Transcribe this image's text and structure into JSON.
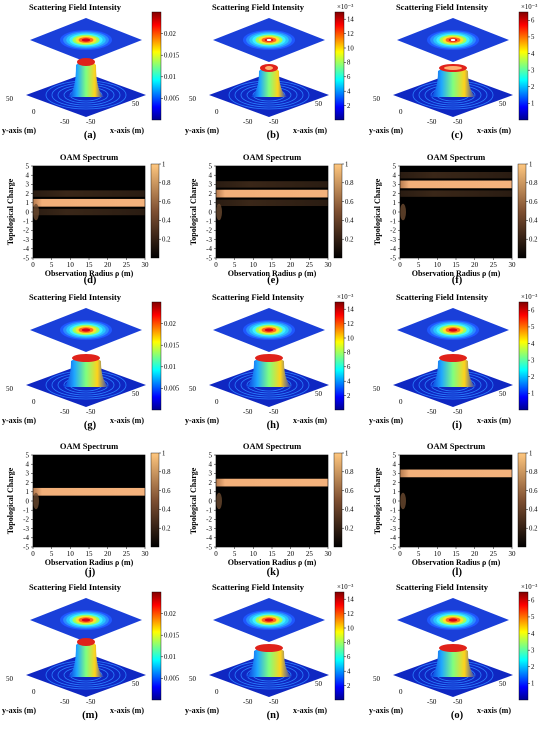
{
  "chart_data": [
    {
      "id": "a",
      "type": "surface3d",
      "panel_label": "(a)",
      "title": "Scattering Field Intensity",
      "xlabel": "x-axis (m)",
      "ylabel": "y-axis (m)",
      "x_ticks": [
        "-50",
        "50"
      ],
      "y_ticks": [
        "50",
        "0",
        "-50"
      ],
      "colorbar": {
        "ticks": [
          "0.005",
          "0.01",
          "0.015",
          "0.02"
        ],
        "range": [
          0,
          0.025
        ],
        "exponent": "",
        "colormap": "jet"
      },
      "peak_shape": "sharp"
    },
    {
      "id": "b",
      "type": "surface3d",
      "panel_label": "(b)",
      "title": "Scattering Field Intensity",
      "xlabel": "x-axis (m)",
      "ylabel": "y-axis (m)",
      "x_ticks": [
        "-50",
        "50"
      ],
      "y_ticks": [
        "50",
        "0",
        "-50"
      ],
      "colorbar": {
        "ticks": [
          "2",
          "4",
          "6",
          "8",
          "10",
          "12",
          "14"
        ],
        "range": [
          0,
          15
        ],
        "exponent": "×10⁻³",
        "colormap": "jet"
      },
      "peak_shape": "ring"
    },
    {
      "id": "c",
      "type": "surface3d",
      "panel_label": "(c)",
      "title": "Scattering Field Intensity",
      "xlabel": "x-axis (m)",
      "ylabel": "y-axis (m)",
      "x_ticks": [
        "-50",
        "50"
      ],
      "y_ticks": [
        "50",
        "0",
        "-50"
      ],
      "colorbar": {
        "ticks": [
          "1",
          "2",
          "3",
          "4",
          "5",
          "6"
        ],
        "range": [
          0,
          6.5
        ],
        "exponent": "×10⁻³",
        "colormap": "jet"
      },
      "peak_shape": "wide-ring"
    },
    {
      "id": "d",
      "type": "heatmap",
      "panel_label": "(d)",
      "title": "OAM Spectrum",
      "xlabel": "Observation Radius ρ (m)",
      "ylabel": "Topological Charge",
      "x": [
        0,
        5,
        10,
        15,
        20,
        25,
        30
      ],
      "y": [
        -5,
        -4,
        -3,
        -2,
        -1,
        0,
        1,
        2,
        3,
        4,
        5
      ],
      "xlim": [
        0,
        30
      ],
      "ylim": [
        -5,
        5
      ],
      "colorbar": {
        "ticks": [
          "0.2",
          "0.4",
          "0.6",
          "0.8",
          "1"
        ],
        "range": [
          0,
          1
        ],
        "colormap": "copper"
      },
      "band": {
        "charge": 1,
        "weak_charges": [
          0,
          2
        ]
      }
    },
    {
      "id": "e",
      "type": "heatmap",
      "panel_label": "(e)",
      "title": "OAM Spectrum",
      "xlabel": "Observation Radius ρ (m)",
      "ylabel": "Topological Charge",
      "x": [
        0,
        5,
        10,
        15,
        20,
        25,
        30
      ],
      "y": [
        -5,
        -4,
        -3,
        -2,
        -1,
        0,
        1,
        2,
        3,
        4,
        5
      ],
      "xlim": [
        0,
        30
      ],
      "ylim": [
        -5,
        5
      ],
      "colorbar": {
        "ticks": [
          "0.2",
          "0.4",
          "0.6",
          "0.8",
          "1"
        ],
        "range": [
          0,
          1
        ],
        "colormap": "copper"
      },
      "band": {
        "charge": 2,
        "weak_charges": [
          1,
          3
        ]
      }
    },
    {
      "id": "f",
      "type": "heatmap",
      "panel_label": "(f)",
      "title": "OAM Spectrum",
      "xlabel": "Observation Radius ρ (m)",
      "ylabel": "Topological Charge",
      "x": [
        0,
        5,
        10,
        15,
        20,
        25,
        30
      ],
      "y": [
        -5,
        -4,
        -3,
        -2,
        -1,
        0,
        1,
        2,
        3,
        4,
        5
      ],
      "xlim": [
        0,
        30
      ],
      "ylim": [
        -5,
        5
      ],
      "colorbar": {
        "ticks": [
          "0.2",
          "0.4",
          "0.6",
          "0.8",
          "1"
        ],
        "range": [
          0,
          1
        ],
        "colormap": "copper"
      },
      "band": {
        "charge": 3,
        "weak_charges": [
          2,
          4
        ]
      }
    },
    {
      "id": "g",
      "type": "surface3d",
      "panel_label": "(g)",
      "title": "Scattering Field Intensity",
      "xlabel": "x-axis (m)",
      "ylabel": "y-axis (m)",
      "x_ticks": [
        "-50",
        "50"
      ],
      "y_ticks": [
        "50",
        "0",
        "-50"
      ],
      "colorbar": {
        "ticks": [
          "0.005",
          "0.01",
          "0.015",
          "0.02"
        ],
        "range": [
          0,
          0.025
        ],
        "exponent": "",
        "colormap": "jet"
      },
      "peak_shape": "dome"
    },
    {
      "id": "h",
      "type": "surface3d",
      "panel_label": "(h)",
      "title": "Scattering Field Intensity",
      "xlabel": "x-axis (m)",
      "ylabel": "y-axis (m)",
      "x_ticks": [
        "-50",
        "50"
      ],
      "y_ticks": [
        "50",
        "0",
        "-50"
      ],
      "colorbar": {
        "ticks": [
          "2",
          "4",
          "6",
          "8",
          "10",
          "12",
          "14"
        ],
        "range": [
          0,
          15
        ],
        "exponent": "×10⁻³",
        "colormap": "jet"
      },
      "peak_shape": "dome"
    },
    {
      "id": "i",
      "type": "surface3d",
      "panel_label": "(i)",
      "title": "Scattering Field Intensity",
      "xlabel": "x-axis (m)",
      "ylabel": "y-axis (m)",
      "x_ticks": [
        "-50",
        "50"
      ],
      "y_ticks": [
        "50",
        "0",
        "-50"
      ],
      "colorbar": {
        "ticks": [
          "1",
          "2",
          "3",
          "4",
          "5",
          "6"
        ],
        "range": [
          0,
          6.5
        ],
        "exponent": "×10⁻³",
        "colormap": "jet"
      },
      "peak_shape": "wide-dome"
    },
    {
      "id": "j",
      "type": "heatmap",
      "panel_label": "(j)",
      "title": "OAM Spectrum",
      "xlabel": "Observation Radius ρ (m)",
      "ylabel": "Topological Charge",
      "x": [
        0,
        5,
        10,
        15,
        20,
        25,
        30
      ],
      "y": [
        -5,
        -4,
        -3,
        -2,
        -1,
        0,
        1,
        2,
        3,
        4,
        5
      ],
      "xlim": [
        0,
        30
      ],
      "ylim": [
        -5,
        5
      ],
      "colorbar": {
        "ticks": [
          "0.2",
          "0.4",
          "0.6",
          "0.8",
          "1"
        ],
        "range": [
          0,
          1
        ],
        "colormap": "copper"
      },
      "band": {
        "charge": 1,
        "weak_charges": []
      }
    },
    {
      "id": "k",
      "type": "heatmap",
      "panel_label": "(k)",
      "title": "OAM Spectrum",
      "xlabel": "Observation Radius ρ (m)",
      "ylabel": "Topological Charge",
      "x": [
        0,
        5,
        10,
        15,
        20,
        25,
        30
      ],
      "y": [
        -5,
        -4,
        -3,
        -2,
        -1,
        0,
        1,
        2,
        3,
        4,
        5
      ],
      "xlim": [
        0,
        30
      ],
      "ylim": [
        -5,
        5
      ],
      "colorbar": {
        "ticks": [
          "0.2",
          "0.4",
          "0.6",
          "0.8",
          "1"
        ],
        "range": [
          0,
          1
        ],
        "colormap": "copper"
      },
      "band": {
        "charge": 2,
        "weak_charges": []
      }
    },
    {
      "id": "l",
      "type": "heatmap",
      "panel_label": "(l)",
      "title": "OAM Spectrum",
      "xlabel": "Observation Radius ρ (m)",
      "ylabel": "Topological Charge",
      "x": [
        0,
        5,
        10,
        15,
        20,
        25,
        30
      ],
      "y": [
        -5,
        -4,
        -3,
        -2,
        -1,
        0,
        1,
        2,
        3,
        4,
        5
      ],
      "xlim": [
        0,
        30
      ],
      "ylim": [
        -5,
        5
      ],
      "colorbar": {
        "ticks": [
          "0.2",
          "0.4",
          "0.6",
          "0.8",
          "1"
        ],
        "range": [
          0,
          1
        ],
        "colormap": "copper"
      },
      "band": {
        "charge": 3,
        "weak_charges": []
      }
    },
    {
      "id": "m",
      "type": "surface3d",
      "panel_label": "(m)",
      "title": "Scattering Field Intensity",
      "xlabel": "x-axis (m)",
      "ylabel": "y-axis (m)",
      "x_ticks": [
        "-50",
        "50"
      ],
      "y_ticks": [
        "50",
        "0",
        "-50"
      ],
      "colorbar": {
        "ticks": [
          "0.005",
          "0.01",
          "0.015",
          "0.02"
        ],
        "range": [
          0,
          0.025
        ],
        "exponent": "",
        "colormap": "jet"
      },
      "peak_shape": "sharp"
    },
    {
      "id": "n",
      "type": "surface3d",
      "panel_label": "(n)",
      "title": "Scattering Field Intensity",
      "xlabel": "x-axis (m)",
      "ylabel": "y-axis (m)",
      "x_ticks": [
        "-50",
        "50"
      ],
      "y_ticks": [
        "50",
        "0",
        "-50"
      ],
      "colorbar": {
        "ticks": [
          "2",
          "4",
          "6",
          "8",
          "10",
          "12",
          "14"
        ],
        "range": [
          0,
          15
        ],
        "exponent": "×10⁻³",
        "colormap": "jet"
      },
      "peak_shape": "dome"
    },
    {
      "id": "o",
      "type": "surface3d",
      "panel_label": "(o)",
      "title": "Scattering Field Intensity",
      "xlabel": "x-axis (m)",
      "ylabel": "y-axis (m)",
      "x_ticks": [
        "-50",
        "50"
      ],
      "y_ticks": [
        "50",
        "0",
        "-50"
      ],
      "colorbar": {
        "ticks": [
          "1",
          "2",
          "3",
          "4",
          "5",
          "6"
        ],
        "range": [
          0,
          6.5
        ],
        "exponent": "×10⁻³",
        "colormap": "jet"
      },
      "peak_shape": "dome"
    }
  ]
}
